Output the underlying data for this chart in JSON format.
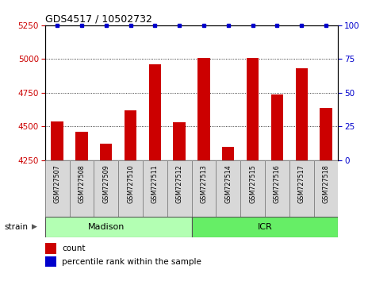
{
  "title": "GDS4517 / 10502732",
  "samples": [
    "GSM727507",
    "GSM727508",
    "GSM727509",
    "GSM727510",
    "GSM727511",
    "GSM727512",
    "GSM727513",
    "GSM727514",
    "GSM727515",
    "GSM727516",
    "GSM727517",
    "GSM727518"
  ],
  "counts": [
    4540,
    4460,
    4370,
    4620,
    4960,
    4530,
    5010,
    4350,
    5010,
    4740,
    4930,
    4640
  ],
  "percentile": [
    100,
    100,
    100,
    100,
    100,
    100,
    100,
    100,
    100,
    100,
    100,
    100
  ],
  "ylim": [
    4250,
    5250
  ],
  "y2lim": [
    0,
    100
  ],
  "yticks": [
    4250,
    4500,
    4750,
    5000,
    5250
  ],
  "y2ticks": [
    0,
    25,
    50,
    75,
    100
  ],
  "bar_color": "#cc0000",
  "dot_color": "#0000cc",
  "madison_color": "#b3ffb3",
  "icr_color": "#66ee66",
  "strain_label": "strain",
  "madison_label": "Madison",
  "icr_label": "ICR",
  "legend_count": "count",
  "legend_percentile": "percentile rank within the sample",
  "tick_label_color_left": "#cc0000",
  "tick_label_color_right": "#0000cc",
  "grid_ticks": [
    4500,
    4750,
    5000
  ]
}
